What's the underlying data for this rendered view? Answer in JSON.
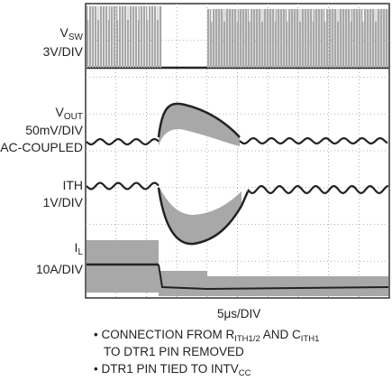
{
  "channels": [
    {
      "name": "V",
      "subscript": "SW",
      "scale": "3V/DIV"
    },
    {
      "name": "V",
      "subscript": "OUT",
      "scale": "50mV/DIV",
      "coupling": "AC-COUPLED"
    },
    {
      "name": "ITH",
      "scale": "1V/DIV"
    },
    {
      "name": "I",
      "subscript": "L",
      "scale": "10A/DIV"
    }
  ],
  "timebase": "5μs/DIV",
  "notes": [
    {
      "text1": "CONNECTION FROM R",
      "sub1": "ITH1/2",
      "text2": " AND C",
      "sub2": "ITH1",
      "line2": "TO DTR1 PIN REMOVED"
    },
    {
      "text1": "DTR1 PIN TIED TO INTV",
      "sub1": "CC"
    }
  ]
}
